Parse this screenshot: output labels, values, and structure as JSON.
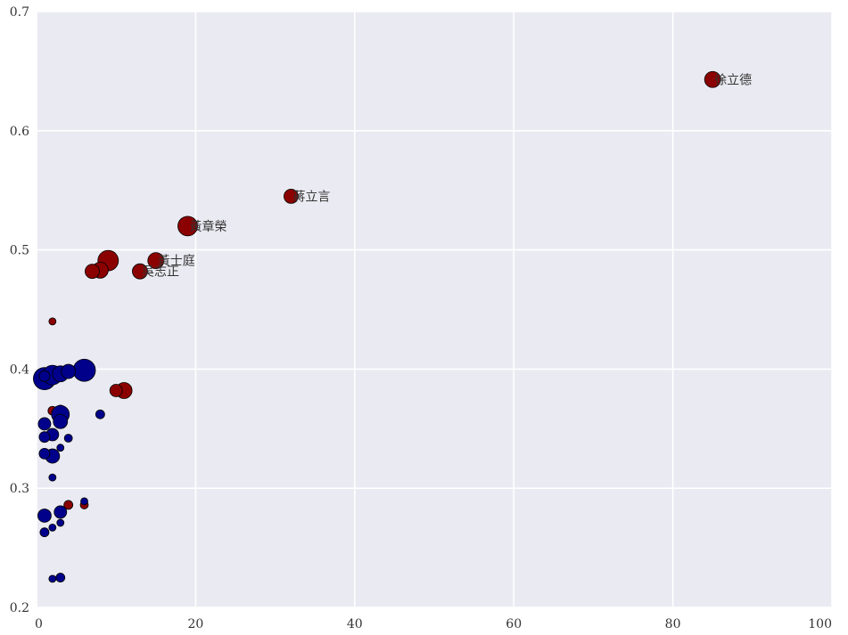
{
  "chart_data": {
    "type": "scatter",
    "title": "",
    "xlabel": "",
    "ylabel": "",
    "xlim": [
      0,
      100
    ],
    "ylim": [
      0.2,
      0.7
    ],
    "x_ticks": [
      "0",
      "20",
      "40",
      "60",
      "80",
      "100"
    ],
    "y_ticks": [
      "0.2",
      "0.3",
      "0.4",
      "0.5",
      "0.6",
      "0.7"
    ],
    "grid": true,
    "background": "#eaeaf2",
    "colors": {
      "red": "#8b0000",
      "blue": "#00008b",
      "edge": "#000000"
    },
    "points": [
      {
        "x": 85,
        "y": 0.643,
        "size": 9,
        "color": "red",
        "label": "徐立德"
      },
      {
        "x": 32,
        "y": 0.545,
        "size": 8,
        "color": "red",
        "label": "蔣立言"
      },
      {
        "x": 19,
        "y": 0.52,
        "size": 11,
        "color": "red",
        "label": "黃章榮"
      },
      {
        "x": 15,
        "y": 0.491,
        "size": 9,
        "color": "red",
        "label": "黃士庭"
      },
      {
        "x": 13,
        "y": 0.482,
        "size": 8.5,
        "color": "red",
        "label": "吳志正"
      },
      {
        "x": 9,
        "y": 0.491,
        "size": 11.5,
        "color": "red",
        "label": ""
      },
      {
        "x": 8,
        "y": 0.483,
        "size": 9,
        "color": "red",
        "label": ""
      },
      {
        "x": 7,
        "y": 0.482,
        "size": 8,
        "color": "red",
        "label": ""
      },
      {
        "x": 11,
        "y": 0.382,
        "size": 9,
        "color": "red",
        "label": ""
      },
      {
        "x": 10,
        "y": 0.382,
        "size": 7,
        "color": "red",
        "label": ""
      },
      {
        "x": 2,
        "y": 0.44,
        "size": 4,
        "color": "red",
        "label": ""
      },
      {
        "x": 2,
        "y": 0.365,
        "size": 5,
        "color": "red",
        "label": ""
      },
      {
        "x": 3,
        "y": 0.366,
        "size": 5,
        "color": "red",
        "label": ""
      },
      {
        "x": 1,
        "y": 0.354,
        "size": 4,
        "color": "red",
        "label": ""
      },
      {
        "x": 4,
        "y": 0.286,
        "size": 5,
        "color": "red",
        "label": ""
      },
      {
        "x": 6,
        "y": 0.286,
        "size": 4.5,
        "color": "red",
        "label": ""
      },
      {
        "x": 6,
        "y": 0.399,
        "size": 12.5,
        "color": "blue",
        "label": ""
      },
      {
        "x": 1,
        "y": 0.392,
        "size": 12.5,
        "color": "blue",
        "label": ""
      },
      {
        "x": 2,
        "y": 0.395,
        "size": 11,
        "color": "blue",
        "label": ""
      },
      {
        "x": 3,
        "y": 0.396,
        "size": 9,
        "color": "blue",
        "label": ""
      },
      {
        "x": 4,
        "y": 0.398,
        "size": 8,
        "color": "blue",
        "label": ""
      },
      {
        "x": 1,
        "y": 0.394,
        "size": 6,
        "color": "blue",
        "label": ""
      },
      {
        "x": 3,
        "y": 0.362,
        "size": 10,
        "color": "blue",
        "label": ""
      },
      {
        "x": 3,
        "y": 0.356,
        "size": 8,
        "color": "blue",
        "label": ""
      },
      {
        "x": 8,
        "y": 0.362,
        "size": 5,
        "color": "blue",
        "label": ""
      },
      {
        "x": 1,
        "y": 0.354,
        "size": 7,
        "color": "blue",
        "label": ""
      },
      {
        "x": 2,
        "y": 0.345,
        "size": 7,
        "color": "blue",
        "label": ""
      },
      {
        "x": 1,
        "y": 0.343,
        "size": 6,
        "color": "blue",
        "label": ""
      },
      {
        "x": 4,
        "y": 0.342,
        "size": 4.5,
        "color": "blue",
        "label": ""
      },
      {
        "x": 3,
        "y": 0.334,
        "size": 4,
        "color": "blue",
        "label": ""
      },
      {
        "x": 2,
        "y": 0.327,
        "size": 8,
        "color": "blue",
        "label": ""
      },
      {
        "x": 1,
        "y": 0.329,
        "size": 6,
        "color": "blue",
        "label": ""
      },
      {
        "x": 2,
        "y": 0.309,
        "size": 4,
        "color": "blue",
        "label": ""
      },
      {
        "x": 6,
        "y": 0.289,
        "size": 4,
        "color": "blue",
        "label": ""
      },
      {
        "x": 3,
        "y": 0.28,
        "size": 7,
        "color": "blue",
        "label": ""
      },
      {
        "x": 1,
        "y": 0.277,
        "size": 7.5,
        "color": "blue",
        "label": ""
      },
      {
        "x": 3,
        "y": 0.271,
        "size": 4,
        "color": "blue",
        "label": ""
      },
      {
        "x": 2,
        "y": 0.267,
        "size": 4,
        "color": "blue",
        "label": ""
      },
      {
        "x": 1,
        "y": 0.263,
        "size": 5,
        "color": "blue",
        "label": ""
      },
      {
        "x": 3,
        "y": 0.225,
        "size": 5,
        "color": "blue",
        "label": ""
      },
      {
        "x": 2,
        "y": 0.224,
        "size": 4,
        "color": "blue",
        "label": ""
      }
    ]
  }
}
